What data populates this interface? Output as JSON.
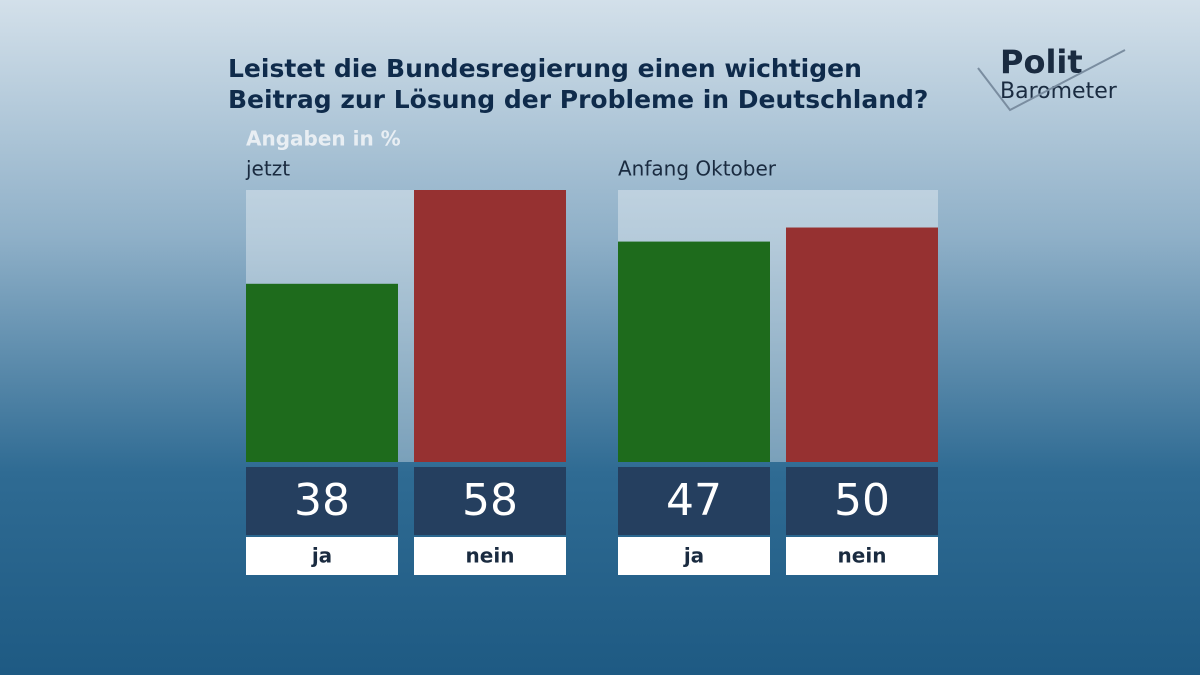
{
  "header": {
    "title_lines": [
      "Leistet die Bundesregierung einen wichtigen",
      "Beitrag zur Lösung der Probleme in Deutschland?"
    ],
    "note": "Angaben in %"
  },
  "logo": {
    "line1": "Polit",
    "line2": "Barometer"
  },
  "chart_data": [
    {
      "type": "bar",
      "title": "jetzt",
      "categories": [
        "ja",
        "nein"
      ],
      "values": [
        38,
        58
      ],
      "colors": [
        "#1e6b1c",
        "#963131"
      ],
      "ylim": [
        0,
        58
      ]
    },
    {
      "type": "bar",
      "title": "Anfang Oktober",
      "categories": [
        "ja",
        "nein"
      ],
      "values": [
        47,
        50
      ],
      "colors": [
        "#1e6b1c",
        "#963131"
      ],
      "ylim": [
        0,
        58
      ]
    }
  ]
}
